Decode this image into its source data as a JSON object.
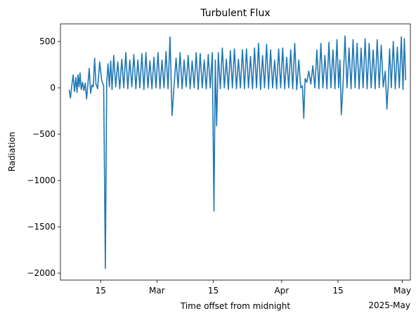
{
  "chart_data": {
    "type": "line",
    "title": "Turbulent Flux",
    "xlabel": "Time offset from midnight",
    "ylabel": "Radiation",
    "x_offset_label": "2025-May",
    "xlim": [
      "2025-02-05",
      "2025-05-03"
    ],
    "ylim": [
      -2075,
      690
    ],
    "yticks": [
      500,
      0,
      -500,
      -1000,
      -1500,
      -2000
    ],
    "ytick_labels": [
      "500",
      "0",
      "−500",
      "−1000",
      "−1500",
      "−2000"
    ],
    "xticks": [
      {
        "date": "2025-02-15",
        "label": "15"
      },
      {
        "date": "2025-03-01",
        "label": "Mar"
      },
      {
        "date": "2025-03-15",
        "label": "15"
      },
      {
        "date": "2025-04-01",
        "label": "Apr"
      },
      {
        "date": "2025-04-15",
        "label": "15"
      },
      {
        "date": "2025-05-01",
        "label": "May"
      }
    ],
    "grid": false,
    "line_color": "#1f77b4",
    "series": [
      {
        "name": "",
        "points": [
          [
            "2025-02-07",
            -20
          ],
          [
            "2025-02-07",
            -110
          ],
          [
            "2025-02-07",
            30
          ],
          [
            "2025-02-08",
            140
          ],
          [
            "2025-02-08",
            -40
          ],
          [
            "2025-02-08",
            110
          ],
          [
            "2025-02-09",
            -50
          ],
          [
            "2025-02-09",
            140
          ],
          [
            "2025-02-09",
            10
          ],
          [
            "2025-02-09",
            160
          ],
          [
            "2025-02-10",
            -20
          ],
          [
            "2025-02-10",
            60
          ],
          [
            "2025-02-10",
            -30
          ],
          [
            "2025-02-11",
            50
          ],
          [
            "2025-02-11",
            -120
          ],
          [
            "2025-02-11",
            40
          ],
          [
            "2025-02-12",
            210
          ],
          [
            "2025-02-12",
            -60
          ],
          [
            "2025-02-12",
            30
          ],
          [
            "2025-02-13",
            10
          ],
          [
            "2025-02-13",
            320
          ],
          [
            "2025-02-13",
            40
          ],
          [
            "2025-02-14",
            -10
          ],
          [
            "2025-02-14",
            280
          ],
          [
            "2025-02-15",
            80
          ],
          [
            "2025-02-15",
            20
          ],
          [
            "2025-02-16",
            -1950
          ],
          [
            "2025-02-16",
            50
          ],
          [
            "2025-02-16",
            260
          ],
          [
            "2025-02-17",
            10
          ],
          [
            "2025-02-17",
            290
          ],
          [
            "2025-02-17",
            -20
          ],
          [
            "2025-02-18",
            350
          ],
          [
            "2025-02-18",
            10
          ],
          [
            "2025-02-19",
            280
          ],
          [
            "2025-02-19",
            -10
          ],
          [
            "2025-02-20",
            310
          ],
          [
            "2025-02-20",
            0
          ],
          [
            "2025-02-21",
            380
          ],
          [
            "2025-02-21",
            -10
          ],
          [
            "2025-02-22",
            300
          ],
          [
            "2025-02-22",
            10
          ],
          [
            "2025-02-23",
            360
          ],
          [
            "2025-02-23",
            -10
          ],
          [
            "2025-02-24",
            300
          ],
          [
            "2025-02-24",
            0
          ],
          [
            "2025-02-25",
            370
          ],
          [
            "2025-02-25",
            -20
          ],
          [
            "2025-02-26",
            380
          ],
          [
            "2025-02-26",
            0
          ],
          [
            "2025-02-27",
            290
          ],
          [
            "2025-02-27",
            -10
          ],
          [
            "2025-02-28",
            330
          ],
          [
            "2025-02-28",
            0
          ],
          [
            "2025-03-01",
            380
          ],
          [
            "2025-03-01",
            -10
          ],
          [
            "2025-03-02",
            300
          ],
          [
            "2025-03-02",
            0
          ],
          [
            "2025-03-03",
            390
          ],
          [
            "2025-03-03",
            -10
          ],
          [
            "2025-03-04",
            550
          ],
          [
            "2025-03-04",
            -300
          ],
          [
            "2025-03-05",
            20
          ],
          [
            "2025-03-05",
            320
          ],
          [
            "2025-03-06",
            0
          ],
          [
            "2025-03-06",
            380
          ],
          [
            "2025-03-07",
            -10
          ],
          [
            "2025-03-07",
            300
          ],
          [
            "2025-03-08",
            10
          ],
          [
            "2025-03-08",
            350
          ],
          [
            "2025-03-09",
            -10
          ],
          [
            "2025-03-09",
            290
          ],
          [
            "2025-03-10",
            0
          ],
          [
            "2025-03-10",
            380
          ],
          [
            "2025-03-11",
            -20
          ],
          [
            "2025-03-11",
            370
          ],
          [
            "2025-03-12",
            0
          ],
          [
            "2025-03-12",
            300
          ],
          [
            "2025-03-13",
            -10
          ],
          [
            "2025-03-13",
            360
          ],
          [
            "2025-03-14",
            0
          ],
          [
            "2025-03-14",
            380
          ],
          [
            "2025-03-15",
            -1330
          ],
          [
            "2025-03-15",
            300
          ],
          [
            "2025-03-15",
            -410
          ],
          [
            "2025-03-16",
            380
          ],
          [
            "2025-03-16",
            -10
          ],
          [
            "2025-03-17",
            430
          ],
          [
            "2025-03-17",
            0
          ],
          [
            "2025-03-18",
            310
          ],
          [
            "2025-03-18",
            -20
          ],
          [
            "2025-03-19",
            400
          ],
          [
            "2025-03-19",
            0
          ],
          [
            "2025-03-20",
            420
          ],
          [
            "2025-03-20",
            -10
          ],
          [
            "2025-03-21",
            310
          ],
          [
            "2025-03-21",
            0
          ],
          [
            "2025-03-22",
            410
          ],
          [
            "2025-03-22",
            -10
          ],
          [
            "2025-03-23",
            420
          ],
          [
            "2025-03-23",
            0
          ],
          [
            "2025-03-24",
            340
          ],
          [
            "2025-03-24",
            -10
          ],
          [
            "2025-03-25",
            430
          ],
          [
            "2025-03-25",
            0
          ],
          [
            "2025-03-26",
            480
          ],
          [
            "2025-03-26",
            -20
          ],
          [
            "2025-03-27",
            350
          ],
          [
            "2025-03-27",
            0
          ],
          [
            "2025-03-28",
            470
          ],
          [
            "2025-03-28",
            -10
          ],
          [
            "2025-03-29",
            410
          ],
          [
            "2025-03-29",
            0
          ],
          [
            "2025-03-30",
            300
          ],
          [
            "2025-03-30",
            -10
          ],
          [
            "2025-03-31",
            420
          ],
          [
            "2025-03-31",
            0
          ],
          [
            "2025-04-01",
            430
          ],
          [
            "2025-04-01",
            -10
          ],
          [
            "2025-04-02",
            330
          ],
          [
            "2025-04-02",
            0
          ],
          [
            "2025-04-03",
            410
          ],
          [
            "2025-04-03",
            -10
          ],
          [
            "2025-04-04",
            480
          ],
          [
            "2025-04-04",
            -20
          ],
          [
            "2025-04-05",
            300
          ],
          [
            "2025-04-05",
            0
          ],
          [
            "2025-04-06",
            20
          ],
          [
            "2025-04-06",
            -330
          ],
          [
            "2025-04-06",
            100
          ],
          [
            "2025-04-07",
            60
          ],
          [
            "2025-04-07",
            180
          ],
          [
            "2025-04-08",
            40
          ],
          [
            "2025-04-08",
            240
          ],
          [
            "2025-04-09",
            0
          ],
          [
            "2025-04-09",
            410
          ],
          [
            "2025-04-10",
            -10
          ],
          [
            "2025-04-10",
            480
          ],
          [
            "2025-04-11",
            0
          ],
          [
            "2025-04-11",
            350
          ],
          [
            "2025-04-12",
            -10
          ],
          [
            "2025-04-12",
            490
          ],
          [
            "2025-04-13",
            0
          ],
          [
            "2025-04-13",
            410
          ],
          [
            "2025-04-14",
            -10
          ],
          [
            "2025-04-14",
            520
          ],
          [
            "2025-04-15",
            0
          ],
          [
            "2025-04-15",
            300
          ],
          [
            "2025-04-15",
            -290
          ],
          [
            "2025-04-16",
            20
          ],
          [
            "2025-04-16",
            560
          ],
          [
            "2025-04-17",
            0
          ],
          [
            "2025-04-17",
            430
          ],
          [
            "2025-04-18",
            -10
          ],
          [
            "2025-04-18",
            520
          ],
          [
            "2025-04-19",
            0
          ],
          [
            "2025-04-19",
            480
          ],
          [
            "2025-04-20",
            -10
          ],
          [
            "2025-04-20",
            430
          ],
          [
            "2025-04-21",
            0
          ],
          [
            "2025-04-21",
            530
          ],
          [
            "2025-04-22",
            -10
          ],
          [
            "2025-04-22",
            480
          ],
          [
            "2025-04-23",
            0
          ],
          [
            "2025-04-23",
            410
          ],
          [
            "2025-04-24",
            -10
          ],
          [
            "2025-04-24",
            520
          ],
          [
            "2025-04-25",
            0
          ],
          [
            "2025-04-25",
            460
          ],
          [
            "2025-04-26",
            10
          ],
          [
            "2025-04-26",
            180
          ],
          [
            "2025-04-27",
            -230
          ],
          [
            "2025-04-27",
            40
          ],
          [
            "2025-04-27",
            420
          ],
          [
            "2025-04-28",
            0
          ],
          [
            "2025-04-28",
            500
          ],
          [
            "2025-04-29",
            -10
          ],
          [
            "2025-04-29",
            440
          ],
          [
            "2025-04-30",
            0
          ],
          [
            "2025-04-30",
            550
          ],
          [
            "2025-05-01",
            -20
          ],
          [
            "2025-05-01",
            530
          ],
          [
            "2025-05-01",
            80
          ]
        ]
      }
    ]
  }
}
